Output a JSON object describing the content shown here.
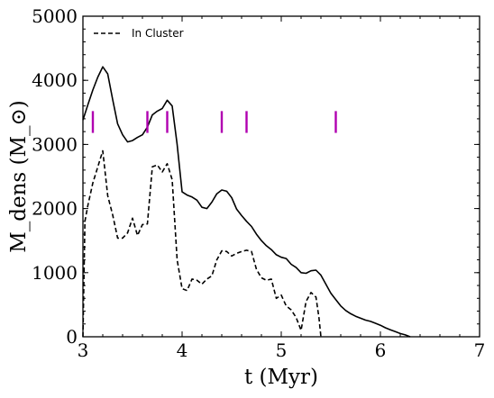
{
  "chart_data": {
    "type": "line",
    "title": "",
    "xlabel": "t (Myr)",
    "ylabel": "M_dens (M_⊙)",
    "xlim": [
      3,
      7
    ],
    "ylim": [
      0,
      5000
    ],
    "x_ticks": [
      3,
      4,
      5,
      6,
      7
    ],
    "y_ticks": [
      0,
      1000,
      2000,
      3000,
      4000,
      5000
    ],
    "legend": {
      "position": "top-left",
      "entries": [
        "In Cluster"
      ]
    },
    "grid": false,
    "marker_color": "#b000b0",
    "markers": {
      "x": [
        3.1,
        3.65,
        3.85,
        4.4,
        4.65,
        5.55
      ],
      "y_range": [
        3180,
        3520
      ]
    },
    "series": [
      {
        "style": "solid",
        "x": [
          3.0,
          3.05,
          3.1,
          3.15,
          3.2,
          3.25,
          3.3,
          3.35,
          3.4,
          3.45,
          3.5,
          3.55,
          3.6,
          3.65,
          3.7,
          3.75,
          3.8,
          3.85,
          3.9,
          3.95,
          4.0,
          4.05,
          4.1,
          4.15,
          4.2,
          4.25,
          4.3,
          4.35,
          4.4,
          4.45,
          4.5,
          4.55,
          4.6,
          4.65,
          4.7,
          4.75,
          4.8,
          4.85,
          4.9,
          4.95,
          5.0,
          5.05,
          5.1,
          5.15,
          5.2,
          5.25,
          5.3,
          5.35,
          5.4,
          5.45,
          5.5,
          5.55,
          5.6,
          5.65,
          5.7,
          5.75,
          5.8,
          5.85,
          5.9,
          5.95,
          6.0,
          6.05,
          6.1,
          6.15,
          6.2,
          6.25,
          6.3
        ],
        "y": [
          3380,
          3620,
          3850,
          4050,
          4210,
          4100,
          3700,
          3320,
          3150,
          3040,
          3060,
          3110,
          3150,
          3270,
          3460,
          3520,
          3560,
          3690,
          3600,
          3000,
          2260,
          2210,
          2180,
          2130,
          2020,
          2000,
          2100,
          2230,
          2290,
          2270,
          2170,
          1990,
          1890,
          1800,
          1720,
          1600,
          1500,
          1420,
          1360,
          1280,
          1240,
          1220,
          1130,
          1080,
          1000,
          990,
          1030,
          1040,
          960,
          820,
          680,
          580,
          480,
          410,
          360,
          320,
          290,
          260,
          240,
          210,
          180,
          140,
          110,
          80,
          50,
          30,
          0
        ]
      },
      {
        "name": "In Cluster",
        "style": "dashed",
        "x": [
          3.0,
          3.02,
          3.05,
          3.1,
          3.15,
          3.2,
          3.25,
          3.3,
          3.35,
          3.4,
          3.45,
          3.5,
          3.55,
          3.6,
          3.65,
          3.7,
          3.75,
          3.8,
          3.85,
          3.9,
          3.95,
          4.0,
          4.05,
          4.1,
          4.15,
          4.2,
          4.25,
          4.3,
          4.35,
          4.4,
          4.45,
          4.5,
          4.55,
          4.6,
          4.65,
          4.7,
          4.75,
          4.8,
          4.85,
          4.9,
          4.95,
          5.0,
          5.05,
          5.1,
          5.15,
          5.2,
          5.25,
          5.3,
          5.35,
          5.38,
          5.4
        ],
        "y": [
          0,
          1800,
          2050,
          2400,
          2650,
          2900,
          2200,
          1900,
          1540,
          1540,
          1620,
          1850,
          1580,
          1750,
          1760,
          2650,
          2680,
          2570,
          2700,
          2450,
          1200,
          750,
          720,
          900,
          880,
          820,
          900,
          950,
          1200,
          1340,
          1330,
          1260,
          1300,
          1330,
          1350,
          1330,
          1050,
          920,
          880,
          900,
          600,
          650,
          480,
          420,
          300,
          100,
          550,
          690,
          620,
          300,
          0
        ]
      }
    ]
  }
}
